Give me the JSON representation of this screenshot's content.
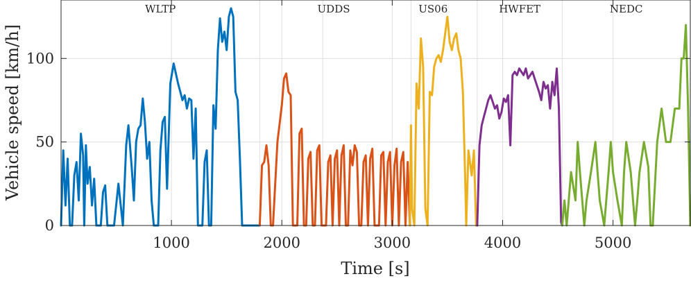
{
  "chart_data": {
    "type": "line",
    "xlabel": "Time [s]",
    "ylabel": "Vehicle speed [km/h]",
    "xlim": [
      0,
      5700
    ],
    "ylim": [
      0,
      135
    ],
    "xticks": [
      1000,
      2000,
      3000,
      4000,
      5000
    ],
    "xtick_labels": [
      "1000",
      "2000",
      "3000",
      "4000",
      "5000"
    ],
    "yticks": [
      0,
      50,
      100
    ],
    "ytick_labels": [
      "0",
      "50",
      "100"
    ],
    "grid": true,
    "segment_boundaries": [
      1800,
      2370,
      3170,
      3770,
      4540
    ],
    "segment_labels": [
      {
        "text": "WLTP",
        "x": 900
      },
      {
        "text": "UDDS",
        "x": 2470
      },
      {
        "text": "US06",
        "x": 3370
      },
      {
        "text": "HWFET",
        "x": 4155
      },
      {
        "text": "NEDC",
        "x": 5120
      }
    ],
    "series": [
      {
        "color": "#0072BD",
        "x": [
          0,
          20,
          40,
          60,
          80,
          100,
          120,
          140,
          160,
          180,
          200,
          210,
          225,
          240,
          260,
          280,
          300,
          320,
          340,
          360,
          380,
          400,
          420,
          440,
          460,
          480,
          520,
          560,
          590,
          610,
          640,
          660,
          680,
          700,
          720,
          740,
          760,
          780,
          800,
          820,
          840,
          860,
          880,
          900,
          920,
          940,
          960,
          990,
          1020,
          1060,
          1080,
          1100,
          1120,
          1140,
          1160,
          1180,
          1200,
          1220,
          1240,
          1260,
          1280,
          1300,
          1320,
          1340,
          1360,
          1380,
          1400,
          1420,
          1440,
          1460,
          1480,
          1500,
          1520,
          1540,
          1560,
          1580,
          1600,
          1620,
          1640,
          1660,
          1680,
          1700,
          1720,
          1740,
          1760,
          1780,
          1800
        ],
        "y": [
          0,
          45,
          12,
          40,
          0,
          0,
          30,
          38,
          15,
          55,
          42,
          0,
          48,
          25,
          35,
          12,
          28,
          0,
          0,
          0,
          20,
          24,
          0,
          0,
          0,
          0,
          25,
          0,
          48,
          60,
          35,
          15,
          50,
          58,
          60,
          76,
          62,
          40,
          50,
          15,
          0,
          0,
          0,
          45,
          62,
          65,
          22,
          85,
          97,
          85,
          80,
          75,
          78,
          70,
          76,
          75,
          40,
          70,
          0,
          0,
          0,
          38,
          45,
          0,
          0,
          72,
          58,
          105,
          124,
          110,
          116,
          105,
          125,
          130,
          125,
          80,
          75,
          40,
          0,
          0,
          0,
          0,
          0,
          0,
          0,
          0,
          0
        ],
        "x_resampled_note": ""
      },
      {
        "color": "#D95319",
        "x": [
          1800,
          1820,
          1840,
          1860,
          1880,
          1900,
          1920,
          1960,
          2000,
          2020,
          2040,
          2060,
          2080,
          2100,
          2120,
          2140,
          2160,
          2180,
          2200,
          2220,
          2240,
          2260,
          2280,
          2300,
          2320,
          2340,
          2360,
          2380,
          2400,
          2420,
          2440,
          2460,
          2480,
          2500,
          2520,
          2540,
          2560,
          2580,
          2600,
          2620,
          2640,
          2660,
          2680,
          2700,
          2720,
          2740,
          2760,
          2780,
          2800,
          2820,
          2840,
          2860,
          2880,
          2900,
          2920,
          2940,
          2960,
          2980,
          3000,
          3020,
          3040,
          3060,
          3080,
          3100,
          3120,
          3140,
          3160
        ],
        "y": [
          0,
          36,
          38,
          48,
          36,
          0,
          0,
          50,
          72,
          88,
          91,
          80,
          78,
          0,
          0,
          0,
          55,
          58,
          0,
          0,
          40,
          44,
          0,
          0,
          45,
          48,
          0,
          0,
          0,
          38,
          42,
          0,
          40,
          45,
          0,
          42,
          48,
          0,
          0,
          45,
          36,
          48,
          44,
          0,
          0,
          38,
          42,
          0,
          40,
          46,
          0,
          0,
          0,
          42,
          44,
          0,
          38,
          44,
          0,
          36,
          46,
          0,
          38,
          44,
          0,
          38,
          0
        ]
      },
      {
        "color": "#EDB120",
        "x": [
          3160,
          3170,
          3180,
          3200,
          3220,
          3240,
          3260,
          3280,
          3300,
          3320,
          3340,
          3360,
          3380,
          3400,
          3420,
          3440,
          3460,
          3480,
          3500,
          3520,
          3540,
          3560,
          3580,
          3600,
          3620,
          3640,
          3660,
          3670,
          3690,
          3700,
          3720,
          3740,
          3760,
          3770
        ],
        "y": [
          0,
          60,
          10,
          0,
          85,
          70,
          112,
          95,
          10,
          0,
          80,
          78,
          95,
          100,
          102,
          98,
          105,
          115,
          125,
          110,
          105,
          112,
          115,
          105,
          100,
          80,
          30,
          0,
          45,
          40,
          30,
          45,
          0,
          0
        ]
      },
      {
        "color": "#7E2F8E",
        "x": [
          3770,
          3790,
          3810,
          3830,
          3850,
          3870,
          3890,
          3910,
          3930,
          3950,
          3970,
          3990,
          4010,
          4030,
          4050,
          4070,
          4090,
          4110,
          4130,
          4150,
          4170,
          4190,
          4210,
          4230,
          4250,
          4270,
          4290,
          4310,
          4330,
          4350,
          4370,
          4390,
          4410,
          4430,
          4450,
          4470,
          4490,
          4510,
          4530,
          4540
        ],
        "y": [
          0,
          48,
          60,
          65,
          70,
          75,
          78,
          74,
          70,
          72,
          64,
          68,
          76,
          74,
          78,
          48,
          90,
          92,
          90,
          94,
          92,
          90,
          94,
          88,
          90,
          92,
          88,
          84,
          80,
          75,
          86,
          82,
          84,
          70,
          86,
          78,
          94,
          70,
          2,
          0
        ]
      },
      {
        "color": "#77AC30",
        "x": [
          4540,
          4560,
          4580,
          4620,
          4660,
          4680,
          4700,
          4740,
          4760,
          4800,
          4840,
          4860,
          4880,
          4920,
          4960,
          4980,
          5000,
          5040,
          5080,
          5100,
          5120,
          5160,
          5200,
          5220,
          5240,
          5280,
          5320,
          5340,
          5360,
          5400,
          5440,
          5480,
          5520,
          5560,
          5600,
          5620,
          5640,
          5660,
          5680,
          5700
        ],
        "y": [
          0,
          15,
          0,
          32,
          15,
          50,
          32,
          0,
          15,
          32,
          50,
          32,
          15,
          0,
          32,
          50,
          32,
          15,
          0,
          32,
          50,
          32,
          0,
          15,
          32,
          50,
          35,
          0,
          0,
          50,
          70,
          50,
          50,
          70,
          70,
          100,
          100,
          120,
          70,
          0
        ]
      }
    ]
  }
}
